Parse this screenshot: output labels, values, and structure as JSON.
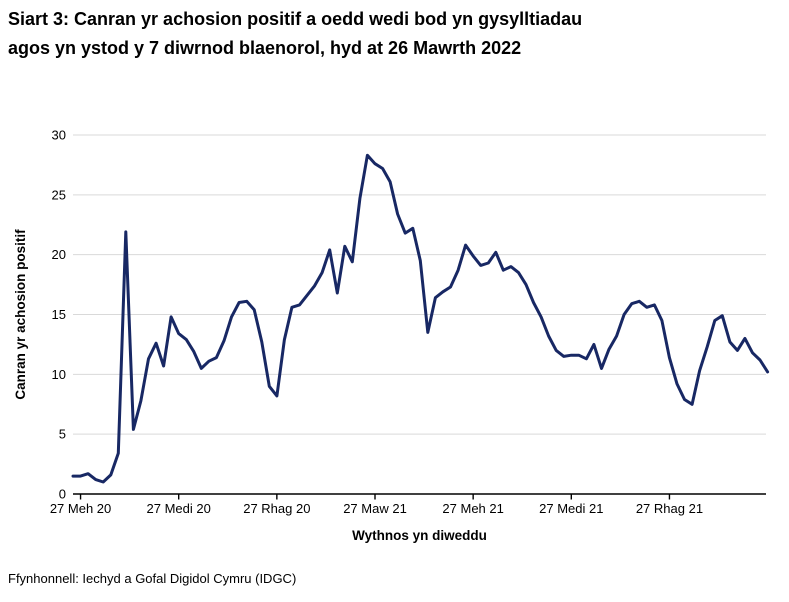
{
  "title": "Siart 3: Canran yr achosion positif a oedd wedi bod yn gysylltiadau\nagos yn ystod y 7 diwrnod blaenorol, hyd at 26 Mawrth 2022",
  "source": "Ffynhonnell: Iechyd a Gofal Digidol Cymru (IDGC)",
  "chart_data": {
    "type": "line",
    "title": "Siart 3: Canran yr achosion positif a oedd wedi bod yn gysylltiadau agos yn ystod y 7 diwrnod blaenorol, hyd at 26 Mawrth 2022",
    "xlabel": "Wythnos yn diweddu",
    "ylabel": "Canran yr achosion positif",
    "ylim": [
      0,
      30
    ],
    "yticks": [
      0,
      5,
      10,
      15,
      20,
      25,
      30
    ],
    "xtick_labels": [
      "27 Meh 20",
      "27 Medi 20",
      "27 Rhag 20",
      "27 Maw 21",
      "27 Meh 21",
      "27 Medi 21",
      "27 Rhag 21"
    ],
    "xtick_week_indices": [
      1,
      14,
      27,
      40,
      53,
      66,
      79
    ],
    "grid": "horizontal",
    "legend": "none",
    "line_color": "#182864",
    "gridline_color": "#d9d9d9",
    "axis_color": "#000000",
    "x_unit": "week",
    "values": [
      1.5,
      1.5,
      1.7,
      1.2,
      1.0,
      1.6,
      3.4,
      21.9,
      5.4,
      7.8,
      11.3,
      12.6,
      10.7,
      14.8,
      13.4,
      12.9,
      11.9,
      10.5,
      11.1,
      11.4,
      12.8,
      14.8,
      16.0,
      16.1,
      15.4,
      12.7,
      9.0,
      8.2,
      12.9,
      15.6,
      15.8,
      16.6,
      17.4,
      18.5,
      20.4,
      16.8,
      20.7,
      19.4,
      24.7,
      28.3,
      27.6,
      27.2,
      26.1,
      23.4,
      21.8,
      22.2,
      19.5,
      13.5,
      16.4,
      16.9,
      17.3,
      18.7,
      20.8,
      19.9,
      19.1,
      19.3,
      20.2,
      18.7,
      19.0,
      18.5,
      17.5,
      16.0,
      14.8,
      13.2,
      12.0,
      11.5,
      11.6,
      11.6,
      11.3,
      12.5,
      10.5,
      12.1,
      13.2,
      15.0,
      15.9,
      16.1,
      15.6,
      15.8,
      14.5,
      11.4,
      9.2,
      7.9,
      7.5,
      10.3,
      12.3,
      14.5,
      14.9,
      12.7,
      12.0,
      13.0,
      11.8,
      11.2,
      10.2
    ]
  }
}
